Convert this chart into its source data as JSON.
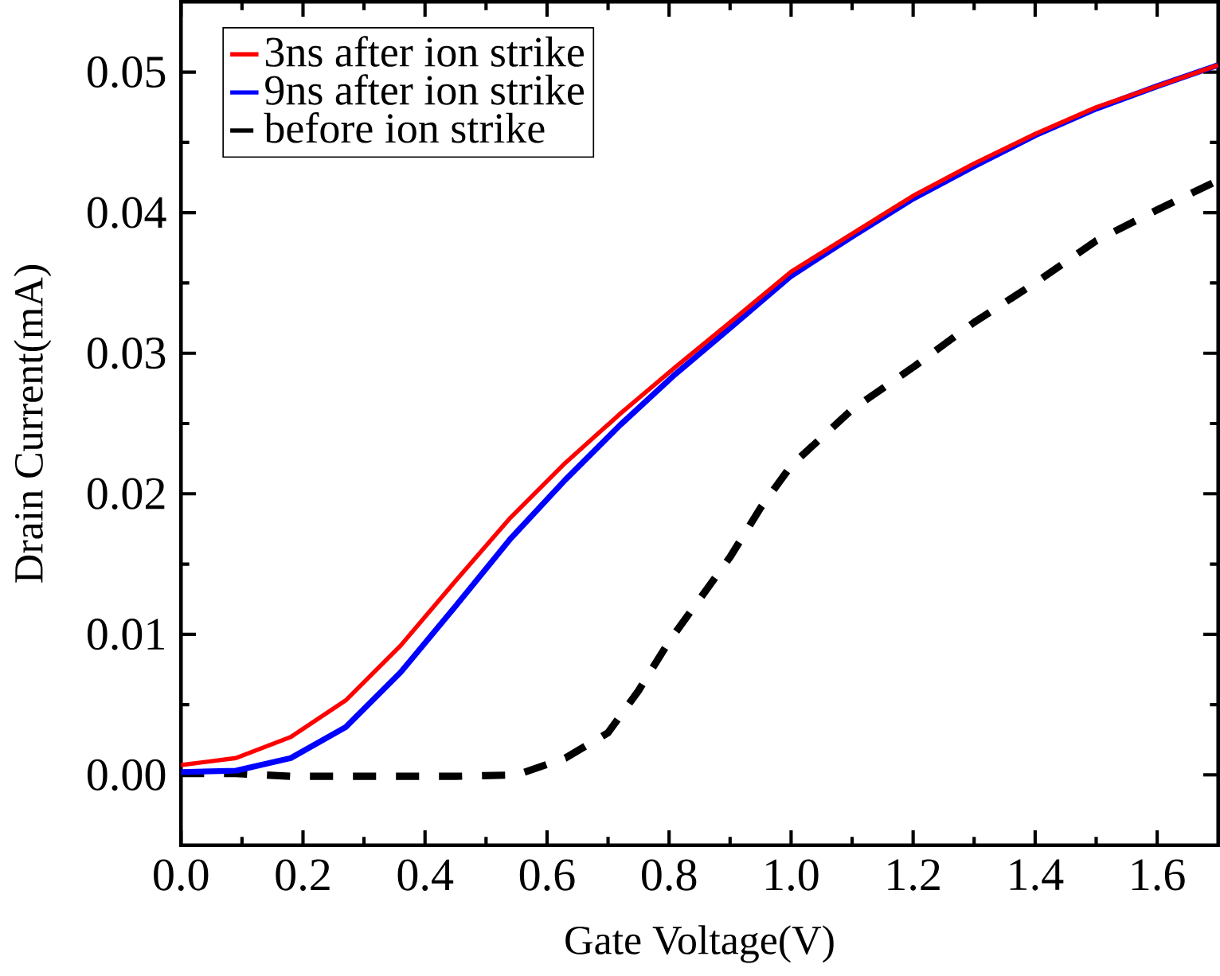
{
  "chart_data": {
    "type": "line",
    "xlabel": "Gate Voltage(V)",
    "ylabel": "Drain Current(mA)",
    "xlim": [
      0,
      1.7
    ],
    "ylim": [
      -0.005,
      0.055
    ],
    "xticks": [
      {
        "value": 0,
        "label": "0.0"
      },
      0.2,
      0.4,
      0.6,
      0.8,
      {
        "value": 1,
        "label": "1.0"
      },
      1.2,
      1.4,
      1.6
    ],
    "yticks": [
      {
        "value": 0,
        "label": "0.00"
      },
      0.01,
      0.02,
      0.03,
      0.04,
      0.05
    ],
    "legend": "top left",
    "grid": false,
    "series": [
      {
        "name": "3ns after ion strike",
        "color": "#ff0000",
        "line_style": "solid",
        "x": [
          0,
          0.09,
          0.18,
          0.27,
          0.36,
          0.45,
          0.54,
          0.63,
          0.72,
          0.81,
          0.9,
          1.0,
          1.1,
          1.2,
          1.3,
          1.4,
          1.5,
          1.6,
          1.7
        ],
        "values": [
          0.0007,
          0.0012,
          0.0027,
          0.0053,
          0.0092,
          0.0138,
          0.0183,
          0.0222,
          0.0257,
          0.029,
          0.0322,
          0.0358,
          0.0385,
          0.0412,
          0.0435,
          0.0456,
          0.0475,
          0.049,
          0.0505
        ]
      },
      {
        "name": "9ns after ion strike",
        "color": "#0000ff",
        "line_style": "solid",
        "x": [
          0,
          0.09,
          0.18,
          0.27,
          0.36,
          0.45,
          0.54,
          0.63,
          0.72,
          0.81,
          0.9,
          1.0,
          1.1,
          1.2,
          1.3,
          1.4,
          1.5,
          1.6,
          1.7
        ],
        "values": [
          0.0002,
          0.0003,
          0.0012,
          0.0034,
          0.0073,
          0.012,
          0.0168,
          0.021,
          0.0249,
          0.0285,
          0.0318,
          0.0355,
          0.0383,
          0.041,
          0.0433,
          0.0455,
          0.0474,
          0.049,
          0.0505
        ]
      },
      {
        "name": "before ion strike",
        "color": "#000000",
        "line_style": "dashed",
        "x": [
          0,
          0.09,
          0.18,
          0.3,
          0.45,
          0.55,
          0.63,
          0.7,
          0.75,
          0.8,
          0.85,
          0.9,
          0.95,
          1.0,
          1.1,
          1.2,
          1.3,
          1.4,
          1.5,
          1.6,
          1.7
        ],
        "values": [
          0.0001,
          0.0001,
          -0.0001,
          -0.0001,
          -0.0001,
          0.0,
          0.0012,
          0.003,
          0.006,
          0.0095,
          0.0125,
          0.0155,
          0.019,
          0.022,
          0.026,
          0.029,
          0.0322,
          0.035,
          0.038,
          0.0402,
          0.0423
        ]
      }
    ]
  }
}
